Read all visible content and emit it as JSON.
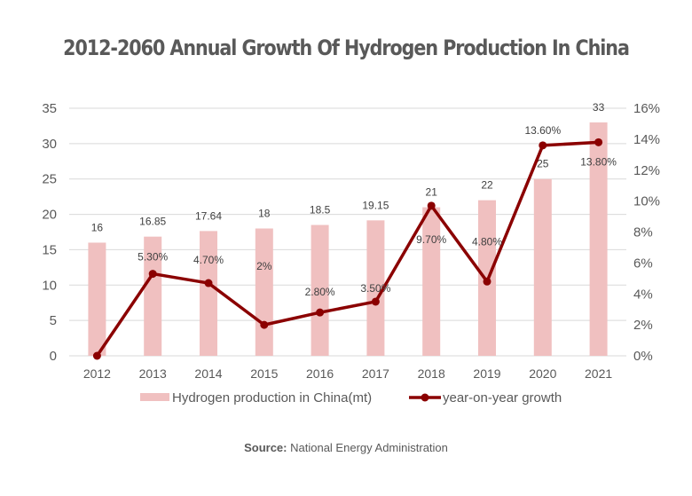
{
  "chart_data": {
    "type": "bar+line",
    "title": "2012-2060 Annual Growth Of Hydrogen Production In China",
    "categories": [
      "2012",
      "2013",
      "2014",
      "2015",
      "2016",
      "2017",
      "2018",
      "2019",
      "2020",
      "2021"
    ],
    "series": [
      {
        "name": "Hydrogen production in China(mt)",
        "type": "bar",
        "axis": "left",
        "color": "#f0c0c0",
        "values": [
          16,
          16.85,
          17.64,
          18,
          18.5,
          19.15,
          21,
          22,
          25,
          33
        ],
        "labels": [
          "16",
          "16.85",
          "17.64",
          "18",
          "18.5",
          "19.15",
          "21",
          "22",
          "25",
          "33"
        ]
      },
      {
        "name": "year-on-year growth",
        "type": "line",
        "axis": "right",
        "color": "#8b0000",
        "values": [
          0,
          5.3,
          4.7,
          2,
          2.8,
          3.5,
          9.7,
          4.8,
          13.6,
          13.8
        ],
        "labels": [
          "",
          "5.30%",
          "4.70%",
          "2%",
          "2.80%",
          "3.50%",
          "9.70%",
          "4.80%",
          "13.60%",
          "13.80%"
        ]
      }
    ],
    "y_left": {
      "range": [
        0,
        35
      ],
      "ticks": [
        "0",
        "5",
        "10",
        "15",
        "20",
        "25",
        "30",
        "35"
      ]
    },
    "y_right": {
      "range": [
        0,
        16
      ],
      "ticks": [
        "0%",
        "2%",
        "4%",
        "6%",
        "8%",
        "10%",
        "12%",
        "14%",
        "16%"
      ]
    },
    "grid": true,
    "legend": "bottom"
  },
  "source": {
    "label": "Source:",
    "text": "National Energy Administration"
  }
}
